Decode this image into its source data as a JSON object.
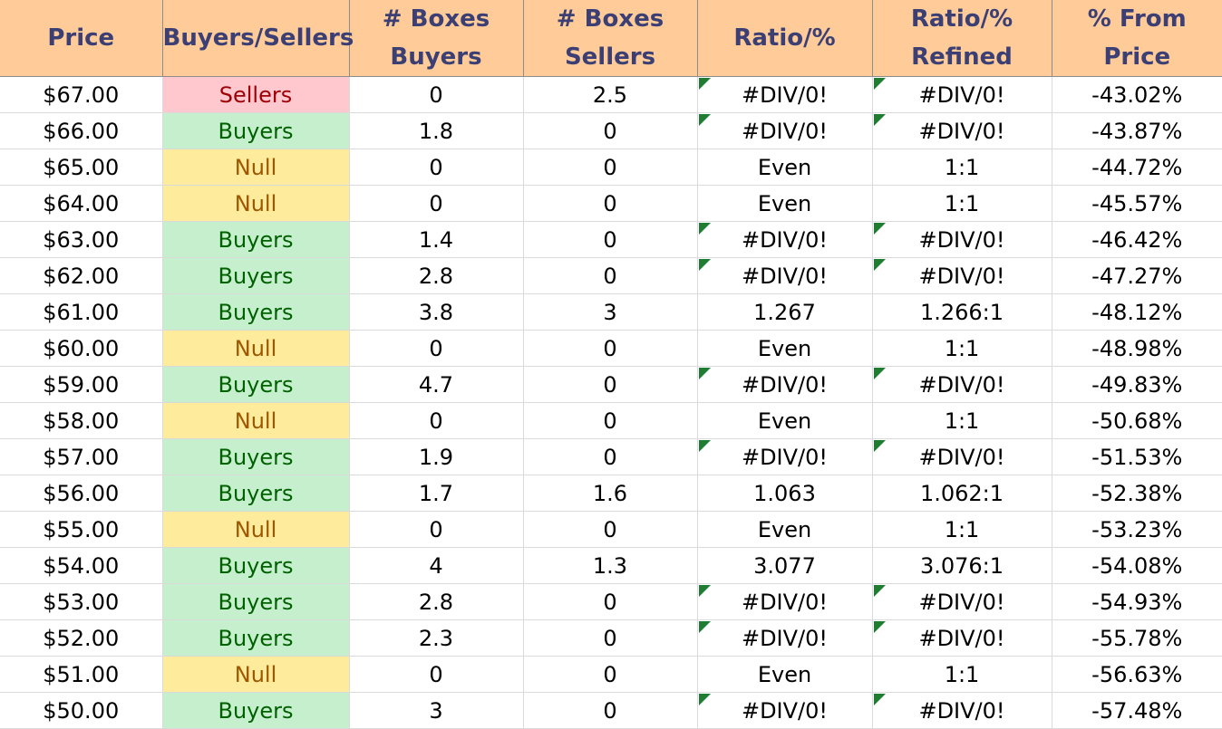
{
  "table": {
    "columns": [
      [
        "Price"
      ],
      [
        "Buyers/Sellers"
      ],
      [
        "# Boxes",
        "Buyers"
      ],
      [
        "# Boxes",
        "Sellers"
      ],
      [
        "Ratio/%"
      ],
      [
        "Ratio/%",
        "Refined"
      ],
      [
        "% From Price"
      ]
    ],
    "rows": [
      {
        "price": "$67.00",
        "side": "Sellers",
        "buyers": "0",
        "sellers": "2.5",
        "ratio": "#DIV/0!",
        "refined": "#DIV/0!",
        "from_price": "-43.02%"
      },
      {
        "price": "$66.00",
        "side": "Buyers",
        "buyers": "1.8",
        "sellers": "0",
        "ratio": "#DIV/0!",
        "refined": "#DIV/0!",
        "from_price": "-43.87%"
      },
      {
        "price": "$65.00",
        "side": "Null",
        "buyers": "0",
        "sellers": "0",
        "ratio": "Even",
        "refined": "1:1",
        "from_price": "-44.72%"
      },
      {
        "price": "$64.00",
        "side": "Null",
        "buyers": "0",
        "sellers": "0",
        "ratio": "Even",
        "refined": "1:1",
        "from_price": "-45.57%"
      },
      {
        "price": "$63.00",
        "side": "Buyers",
        "buyers": "1.4",
        "sellers": "0",
        "ratio": "#DIV/0!",
        "refined": "#DIV/0!",
        "from_price": "-46.42%"
      },
      {
        "price": "$62.00",
        "side": "Buyers",
        "buyers": "2.8",
        "sellers": "0",
        "ratio": "#DIV/0!",
        "refined": "#DIV/0!",
        "from_price": "-47.27%"
      },
      {
        "price": "$61.00",
        "side": "Buyers",
        "buyers": "3.8",
        "sellers": "3",
        "ratio": "1.267",
        "refined": "1.266:1",
        "from_price": "-48.12%"
      },
      {
        "price": "$60.00",
        "side": "Null",
        "buyers": "0",
        "sellers": "0",
        "ratio": "Even",
        "refined": "1:1",
        "from_price": "-48.98%"
      },
      {
        "price": "$59.00",
        "side": "Buyers",
        "buyers": "4.7",
        "sellers": "0",
        "ratio": "#DIV/0!",
        "refined": "#DIV/0!",
        "from_price": "-49.83%"
      },
      {
        "price": "$58.00",
        "side": "Null",
        "buyers": "0",
        "sellers": "0",
        "ratio": "Even",
        "refined": "1:1",
        "from_price": "-50.68%"
      },
      {
        "price": "$57.00",
        "side": "Buyers",
        "buyers": "1.9",
        "sellers": "0",
        "ratio": "#DIV/0!",
        "refined": "#DIV/0!",
        "from_price": "-51.53%"
      },
      {
        "price": "$56.00",
        "side": "Buyers",
        "buyers": "1.7",
        "sellers": "1.6",
        "ratio": "1.063",
        "refined": "1.062:1",
        "from_price": "-52.38%"
      },
      {
        "price": "$55.00",
        "side": "Null",
        "buyers": "0",
        "sellers": "0",
        "ratio": "Even",
        "refined": "1:1",
        "from_price": "-53.23%"
      },
      {
        "price": "$54.00",
        "side": "Buyers",
        "buyers": "4",
        "sellers": "1.3",
        "ratio": "3.077",
        "refined": "3.076:1",
        "from_price": "-54.08%"
      },
      {
        "price": "$53.00",
        "side": "Buyers",
        "buyers": "2.8",
        "sellers": "0",
        "ratio": "#DIV/0!",
        "refined": "#DIV/0!",
        "from_price": "-54.93%"
      },
      {
        "price": "$52.00",
        "side": "Buyers",
        "buyers": "2.3",
        "sellers": "0",
        "ratio": "#DIV/0!",
        "refined": "#DIV/0!",
        "from_price": "-55.78%"
      },
      {
        "price": "$51.00",
        "side": "Null",
        "buyers": "0",
        "sellers": "0",
        "ratio": "Even",
        "refined": "1:1",
        "from_price": "-56.63%"
      },
      {
        "price": "$50.00",
        "side": "Buyers",
        "buyers": "3",
        "sellers": "0",
        "ratio": "#DIV/0!",
        "refined": "#DIV/0!",
        "from_price": "-57.48%"
      }
    ]
  },
  "colors": {
    "header_bg": "#ffcc99",
    "header_text": "#3b3f73",
    "sellers_bg": "#ffc7ce",
    "sellers_text": "#9c0006",
    "buyers_bg": "#c6efce",
    "buyers_text": "#006100",
    "null_bg": "#ffeb9c",
    "null_text": "#9c5700",
    "error_indicator": "#1e7d32"
  }
}
